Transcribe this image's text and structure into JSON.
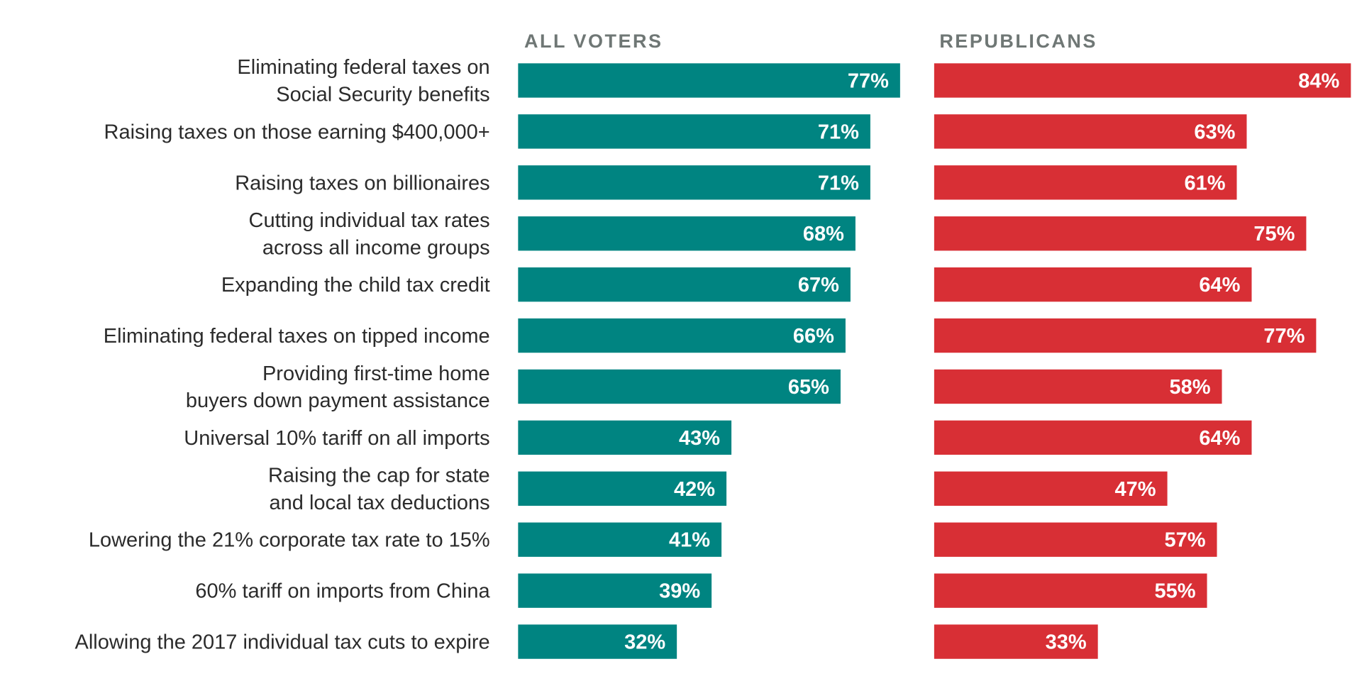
{
  "chart_data": {
    "type": "bar",
    "orientation": "horizontal",
    "categories": [
      [
        "Eliminating federal taxes on",
        "Social Security benefits"
      ],
      [
        "Raising taxes on those earning $400,000+"
      ],
      [
        "Raising taxes on billionaires"
      ],
      [
        "Cutting individual tax rates",
        "across all income groups"
      ],
      [
        "Expanding the child tax credit"
      ],
      [
        "Eliminating federal taxes on tipped income"
      ],
      [
        "Providing first-time home",
        "buyers down payment assistance"
      ],
      [
        "Universal 10% tariff on all imports"
      ],
      [
        "Raising the cap for state",
        "and local tax deductions"
      ],
      [
        "Lowering the 21% corporate tax rate to 15%"
      ],
      [
        "60% tariff on imports from China"
      ],
      [
        "Allowing the 2017 individual tax cuts to expire"
      ]
    ],
    "series": [
      {
        "name": "ALL VOTERS",
        "color": "#008481",
        "values": [
          77,
          71,
          71,
          68,
          67,
          66,
          65,
          43,
          42,
          41,
          39,
          32
        ],
        "labels": [
          "77%",
          "71%",
          "71%",
          "68%",
          "67%",
          "66%",
          "65%",
          "43%",
          "42%",
          "41%",
          "39%",
          "32%"
        ]
      },
      {
        "name": "REPUBLICANS",
        "color": "#d82f35",
        "values": [
          84,
          63,
          61,
          75,
          64,
          77,
          58,
          64,
          47,
          57,
          55,
          33
        ],
        "labels": [
          "84%",
          "63%",
          "61%",
          "75%",
          "64%",
          "77%",
          "58%",
          "64%",
          "47%",
          "57%",
          "55%",
          "33%"
        ]
      }
    ],
    "xlim": [
      0,
      100
    ],
    "grid": false,
    "legend": "none"
  }
}
